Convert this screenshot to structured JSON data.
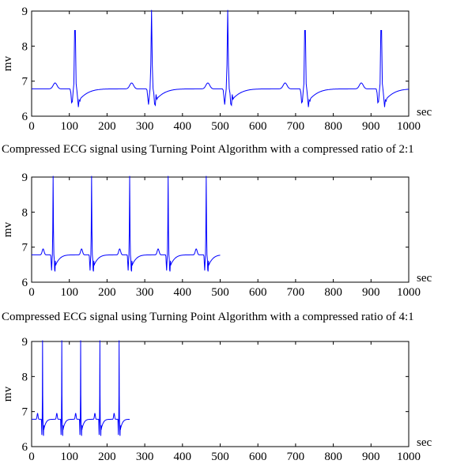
{
  "chart_data": [
    {
      "type": "line",
      "title": "",
      "xlabel": "sec",
      "ylabel": "mv",
      "xlim": [
        0,
        1000
      ],
      "ylim": [
        6,
        9
      ],
      "xticks": [
        "0",
        "100",
        "200",
        "300",
        "400",
        "500",
        "600",
        "700",
        "800",
        "900",
        "1000"
      ],
      "yticks": [
        "6",
        "7",
        "8",
        "9"
      ],
      "grid": false,
      "beats": [
        115,
        318,
        520,
        725,
        927
      ],
      "series": [
        {
          "color": "#0000ff",
          "x_max": 1000,
          "x_step": 2
        }
      ],
      "caption": "Compressed ECG signal using Turning Point Algorithm with a compressed ratio of 2:1"
    },
    {
      "type": "line",
      "title": "",
      "xlabel": "sec",
      "ylabel": "mv",
      "xlim": [
        0,
        1000
      ],
      "ylim": [
        6,
        9
      ],
      "xticks": [
        "0",
        "100",
        "200",
        "300",
        "400",
        "500",
        "600",
        "700",
        "800",
        "900",
        "1000"
      ],
      "yticks": [
        "6",
        "7",
        "8",
        "9"
      ],
      "grid": false,
      "beats": [
        57,
        159,
        260,
        362,
        463
      ],
      "series": [
        {
          "color": "#0000ff",
          "x_max": 500,
          "x_step": 1
        }
      ],
      "caption": "Compressed ECG signal using Turning Point  Algorithm with a compressed ratio of 4:1"
    },
    {
      "type": "line",
      "title": "",
      "xlabel": "sec",
      "ylabel": "mv",
      "xlim": [
        0,
        1000
      ],
      "ylim": [
        6,
        9
      ],
      "xticks": [
        "0",
        "100",
        "200",
        "300",
        "400",
        "500",
        "600",
        "700",
        "800",
        "900",
        "1000"
      ],
      "yticks": [
        "6",
        "7",
        "8",
        "9"
      ],
      "grid": false,
      "beats": [
        29,
        80,
        130,
        181,
        232
      ],
      "series": [
        {
          "color": "#0000ff",
          "x_max": 260,
          "x_step": 0.5
        }
      ]
    }
  ]
}
